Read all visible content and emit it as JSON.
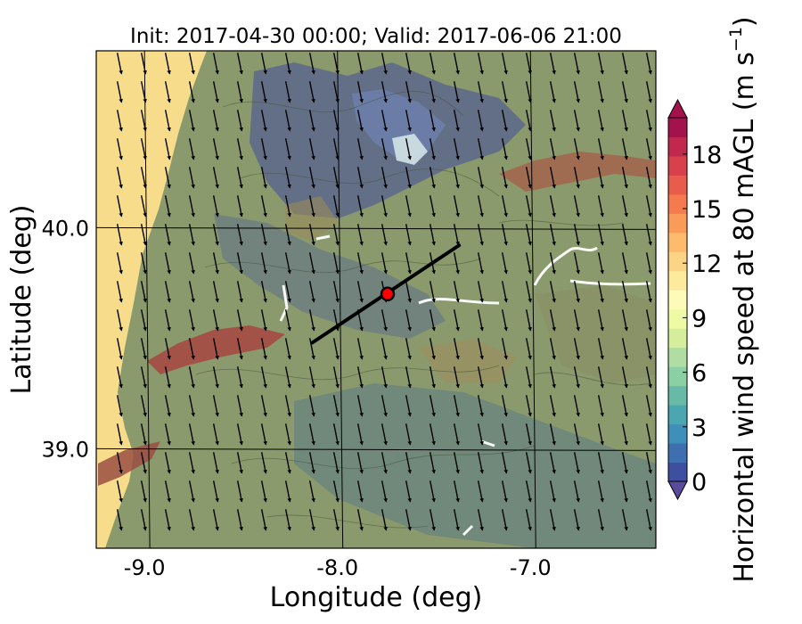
{
  "title": "Init: 2017-04-30 00:00; Valid: 2017-06-06 21:00",
  "x_axis": {
    "label": "Longitude (deg)",
    "range": [
      -9.25,
      -6.35
    ],
    "ticks": [
      -9.0,
      -8.0,
      -7.0
    ],
    "tick_labels": [
      "-9.0",
      "-8.0",
      "-7.0"
    ]
  },
  "y_axis": {
    "label": "Latitude (deg)",
    "range": [
      38.55,
      40.8
    ],
    "ticks": [
      39.0,
      40.0
    ],
    "tick_labels": [
      "39.0",
      "40.0"
    ]
  },
  "grid": true,
  "colorbar": {
    "label_main": "Horizontal wind speed at 80 mAGL (m s",
    "label_exp": "−1",
    "label_close": ")",
    "range": [
      0,
      20
    ],
    "ticks": [
      0,
      3,
      6,
      9,
      12,
      15,
      18
    ],
    "tick_labels": [
      "0",
      "3",
      "6",
      "9",
      "12",
      "15",
      "18"
    ],
    "extend": "both",
    "colors": [
      "#3e4fa1",
      "#3e6fb0",
      "#3f8fbb",
      "#4aa7b1",
      "#67bba6",
      "#8bcfa5",
      "#b0dea2",
      "#d5ee9b",
      "#effaa4",
      "#fefbb8",
      "#feea9c",
      "#fdd385",
      "#fdbb6b",
      "#fa9b5a",
      "#f57a4d",
      "#e75c4a",
      "#d8414b",
      "#c1284d",
      "#a3124c"
    ]
  },
  "transect": {
    "start": [
      -8.13,
      39.48
    ],
    "end": [
      -7.37,
      39.92
    ],
    "color": "#000000"
  },
  "marker": {
    "lon": -7.74,
    "lat": 39.7,
    "color": "#ff0000"
  },
  "wind_arrows": {
    "u": 0.2,
    "v": -1.0,
    "color": "#000000"
  }
}
